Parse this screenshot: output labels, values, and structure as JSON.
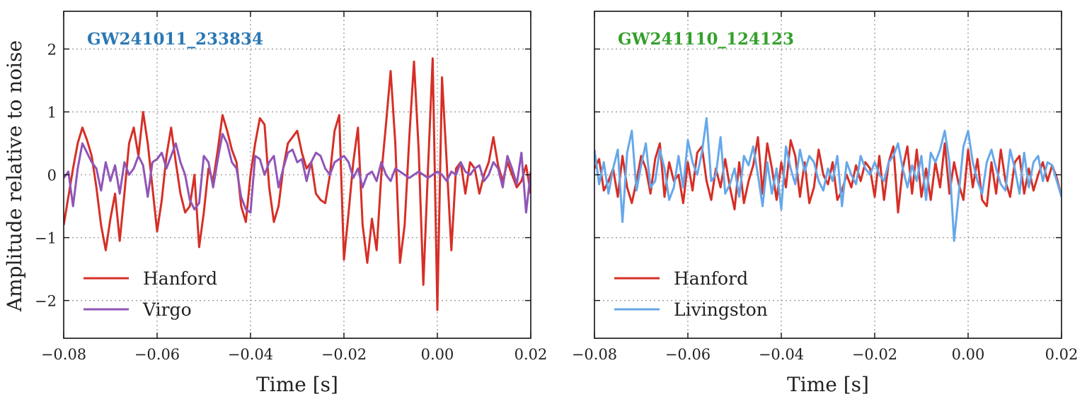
{
  "figure": {
    "shared_ylabel": "Amplitude relative to noise"
  },
  "chart_data": [
    {
      "type": "line",
      "title": "GW241011_233834",
      "title_color": "#2a78b5",
      "xlabel": "Time [s]",
      "ylabel": "Amplitude relative to noise",
      "xlim": [
        -0.08,
        0.02
      ],
      "ylim": [
        -2.6,
        2.6
      ],
      "grid": true,
      "legend_position": "lower-left",
      "x_ticks": [
        -0.08,
        -0.06,
        -0.04,
        -0.02,
        0.0,
        0.02
      ],
      "x_tick_labels": [
        "−0.08",
        "−0.06",
        "−0.04",
        "−0.02",
        "0.00",
        "0.02"
      ],
      "y_ticks": [
        2,
        1,
        0,
        -1,
        -2
      ],
      "y_tick_labels": [
        "2",
        "1",
        "0",
        "−1",
        "−2"
      ],
      "x": [
        -0.08,
        -0.079,
        -0.078,
        -0.077,
        -0.076,
        -0.075,
        -0.074,
        -0.073,
        -0.072,
        -0.071,
        -0.07,
        -0.069,
        -0.068,
        -0.067,
        -0.066,
        -0.065,
        -0.064,
        -0.063,
        -0.062,
        -0.061,
        -0.06,
        -0.059,
        -0.058,
        -0.057,
        -0.056,
        -0.055,
        -0.054,
        -0.053,
        -0.052,
        -0.051,
        -0.05,
        -0.049,
        -0.048,
        -0.047,
        -0.046,
        -0.045,
        -0.044,
        -0.043,
        -0.042,
        -0.041,
        -0.04,
        -0.039,
        -0.038,
        -0.037,
        -0.036,
        -0.035,
        -0.034,
        -0.033,
        -0.032,
        -0.031,
        -0.03,
        -0.029,
        -0.028,
        -0.027,
        -0.026,
        -0.025,
        -0.024,
        -0.023,
        -0.022,
        -0.021,
        -0.02,
        -0.019,
        -0.018,
        -0.017,
        -0.016,
        -0.015,
        -0.014,
        -0.013,
        -0.012,
        -0.011,
        -0.01,
        -0.009,
        -0.008,
        -0.007,
        -0.006,
        -0.005,
        -0.004,
        -0.003,
        -0.002,
        -0.001,
        0.0,
        0.001,
        0.002,
        0.003,
        0.004,
        0.005,
        0.006,
        0.007,
        0.008,
        0.009,
        0.01,
        0.011,
        0.012,
        0.013,
        0.014,
        0.015,
        0.016,
        0.017,
        0.018,
        0.019,
        0.02
      ],
      "series": [
        {
          "name": "Hanford",
          "color": "#d62f26",
          "values": [
            -0.8,
            -0.35,
            0.1,
            0.5,
            0.75,
            0.55,
            0.3,
            -0.2,
            -0.8,
            -1.2,
            -0.7,
            -0.3,
            -1.05,
            -0.3,
            0.5,
            0.75,
            0.3,
            1.0,
            0.5,
            -0.2,
            -0.9,
            -0.4,
            0.3,
            0.75,
            0.2,
            -0.3,
            -0.6,
            -0.5,
            0.0,
            -1.15,
            -0.6,
            0.1,
            -0.1,
            0.4,
            0.95,
            0.7,
            0.4,
            0.2,
            -0.5,
            -0.75,
            0.0,
            0.5,
            0.9,
            0.8,
            -0.2,
            -0.75,
            -0.5,
            0.1,
            0.5,
            0.6,
            0.7,
            0.35,
            0.1,
            0.2,
            -0.3,
            -0.4,
            -0.45,
            0.0,
            0.7,
            0.95,
            -1.35,
            -0.6,
            0.2,
            0.75,
            -0.8,
            -1.4,
            -0.7,
            -1.2,
            0.0,
            0.8,
            1.65,
            0.5,
            -1.4,
            -0.8,
            0.6,
            1.8,
            0.4,
            -1.75,
            0.1,
            1.85,
            -2.15,
            1.55,
            0.2,
            -1.2,
            0.1,
            0.2,
            -0.3,
            0.2,
            0.1,
            -0.3,
            0.0,
            0.2,
            0.6,
            0.15,
            -0.1,
            0.2,
            0.0,
            -0.2,
            -0.1,
            0.15,
            -0.3
          ]
        },
        {
          "name": "Virgo",
          "color": "#9055b7",
          "values": [
            -0.05,
            0.05,
            -0.5,
            0.1,
            0.5,
            0.35,
            0.2,
            0.1,
            -0.25,
            0.2,
            -0.1,
            0.15,
            -0.3,
            0.2,
            0.0,
            0.1,
            0.3,
            0.15,
            -0.35,
            0.2,
            0.25,
            0.35,
            0.1,
            0.3,
            0.5,
            0.2,
            0.0,
            -0.4,
            -0.55,
            -0.45,
            0.3,
            0.2,
            -0.2,
            0.25,
            0.65,
            0.5,
            0.2,
            0.1,
            -0.35,
            -0.55,
            -0.6,
            0.3,
            0.25,
            0.0,
            0.2,
            0.3,
            -0.2,
            0.1,
            0.35,
            0.4,
            0.2,
            0.25,
            -0.1,
            0.2,
            0.35,
            0.3,
            0.1,
            0.0,
            0.2,
            0.25,
            0.3,
            0.2,
            -0.05,
            0.1,
            -0.2,
            0.0,
            0.05,
            -0.1,
            0.2,
            0.0,
            -0.1,
            0.1,
            0.05,
            0.0,
            -0.05,
            0.0,
            0.05,
            0.0,
            -0.05,
            0.0,
            0.05,
            0.0,
            -0.1,
            0.05,
            0.0,
            0.2,
            0.05,
            0.0,
            0.1,
            0.15,
            -0.1,
            0.0,
            0.2,
            0.1,
            -0.2,
            0.3,
            0.1,
            -0.15,
            0.35,
            -0.6,
            0.05
          ]
        }
      ]
    },
    {
      "type": "line",
      "title": "GW241110_124123",
      "title_color": "#34a02c",
      "xlabel": "Time [s]",
      "ylabel": "",
      "xlim": [
        -0.08,
        0.02
      ],
      "ylim": [
        -2.6,
        2.6
      ],
      "grid": true,
      "legend_position": "lower-left",
      "x_ticks": [
        -0.08,
        -0.06,
        -0.04,
        -0.02,
        0.0,
        0.02
      ],
      "x_tick_labels": [
        "−0.08",
        "−0.06",
        "−0.04",
        "−0.02",
        "0.00",
        "0.02"
      ],
      "y_ticks": [
        2,
        1,
        0,
        -1,
        -2
      ],
      "y_tick_labels": [],
      "x": [
        -0.08,
        -0.079,
        -0.078,
        -0.077,
        -0.076,
        -0.075,
        -0.074,
        -0.073,
        -0.072,
        -0.071,
        -0.07,
        -0.069,
        -0.068,
        -0.067,
        -0.066,
        -0.065,
        -0.064,
        -0.063,
        -0.062,
        -0.061,
        -0.06,
        -0.059,
        -0.058,
        -0.057,
        -0.056,
        -0.055,
        -0.054,
        -0.053,
        -0.052,
        -0.051,
        -0.05,
        -0.049,
        -0.048,
        -0.047,
        -0.046,
        -0.045,
        -0.044,
        -0.043,
        -0.042,
        -0.041,
        -0.04,
        -0.039,
        -0.038,
        -0.037,
        -0.036,
        -0.035,
        -0.034,
        -0.033,
        -0.032,
        -0.031,
        -0.03,
        -0.029,
        -0.028,
        -0.027,
        -0.026,
        -0.025,
        -0.024,
        -0.023,
        -0.022,
        -0.021,
        -0.02,
        -0.019,
        -0.018,
        -0.017,
        -0.016,
        -0.015,
        -0.014,
        -0.013,
        -0.012,
        -0.011,
        -0.01,
        -0.009,
        -0.008,
        -0.007,
        -0.006,
        -0.005,
        -0.004,
        -0.003,
        -0.002,
        -0.001,
        0.0,
        0.001,
        0.002,
        0.003,
        0.004,
        0.005,
        0.006,
        0.007,
        0.008,
        0.009,
        0.01,
        0.011,
        0.012,
        0.013,
        0.014,
        0.015,
        0.016,
        0.017,
        0.018,
        0.019,
        0.02
      ],
      "series": [
        {
          "name": "Hanford",
          "color": "#d62f26",
          "values": [
            0.1,
            0.25,
            -0.25,
            -0.1,
            0.1,
            -0.35,
            0.3,
            -0.2,
            -0.45,
            -0.1,
            0.3,
            0.1,
            -0.3,
            0.25,
            0.5,
            -0.35,
            0.2,
            -0.1,
            0.0,
            -0.45,
            0.2,
            -0.25,
            0.35,
            0.45,
            -0.1,
            -0.4,
            0.1,
            -0.2,
            0.25,
            -0.2,
            -0.55,
            0.2,
            -0.45,
            -0.1,
            0.15,
            0.6,
            -0.3,
            0.5,
            0.1,
            -0.4,
            0.2,
            -0.2,
            0.55,
            0.3,
            -0.35,
            0.2,
            -0.45,
            -0.2,
            0.4,
            0.0,
            -0.15,
            0.2,
            -0.4,
            -0.25,
            0.0,
            -0.2,
            0.15,
            -0.1,
            0.2,
            0.1,
            -0.35,
            0.3,
            -0.4,
            0.2,
            0.45,
            -0.6,
            0.1,
            0.45,
            -0.3,
            0.4,
            -0.35,
            0.1,
            -0.4,
            0.2,
            -0.2,
            0.5,
            -0.3,
            0.2,
            -0.15,
            -0.4,
            0.4,
            -0.2,
            0.25,
            -0.4,
            -0.5,
            0.2,
            -0.3,
            0.4,
            -0.1,
            -0.35,
            0.2,
            0.3,
            -0.3,
            0.1,
            -0.25,
            0.0,
            0.2,
            -0.1,
            0.15,
            -0.05,
            -0.35
          ]
        },
        {
          "name": "Livingston",
          "color": "#66a8ea",
          "values": [
            0.4,
            -0.15,
            0.2,
            -0.3,
            0.1,
            0.4,
            -0.75,
            0.35,
            0.7,
            -0.25,
            0.15,
            0.5,
            -0.2,
            -0.1,
            0.4,
            0.1,
            -0.4,
            -0.2,
            0.3,
            -0.2,
            0.55,
            0.2,
            0.0,
            0.35,
            0.9,
            -0.1,
            0.0,
            0.6,
            -0.3,
            -0.15,
            0.1,
            -0.35,
            0.3,
            0.15,
            0.45,
            0.0,
            -0.5,
            0.2,
            -0.3,
            0.1,
            -0.55,
            0.45,
            0.1,
            -0.15,
            0.4,
            0.05,
            0.3,
            0.2,
            -0.1,
            -0.25,
            0.1,
            -0.1,
            0.3,
            -0.5,
            0.2,
            0.0,
            -0.15,
            0.3,
            0.1,
            0.0,
            0.2,
            0.0,
            -0.1,
            0.2,
            0.3,
            0.5,
            0.1,
            -0.2,
            0.15,
            -0.1,
            0.3,
            -0.4,
            0.35,
            0.2,
            0.4,
            0.7,
            0.2,
            -1.05,
            -0.3,
            0.45,
            0.7,
            0.2,
            -0.1,
            -0.3,
            0.2,
            0.4,
            0.1,
            -0.15,
            -0.25,
            0.4,
            0.1,
            -0.3,
            0.35,
            -0.2,
            0.2,
            0.3,
            -0.1,
            0.2,
            0.15,
            -0.1,
            -0.35
          ]
        }
      ]
    }
  ]
}
